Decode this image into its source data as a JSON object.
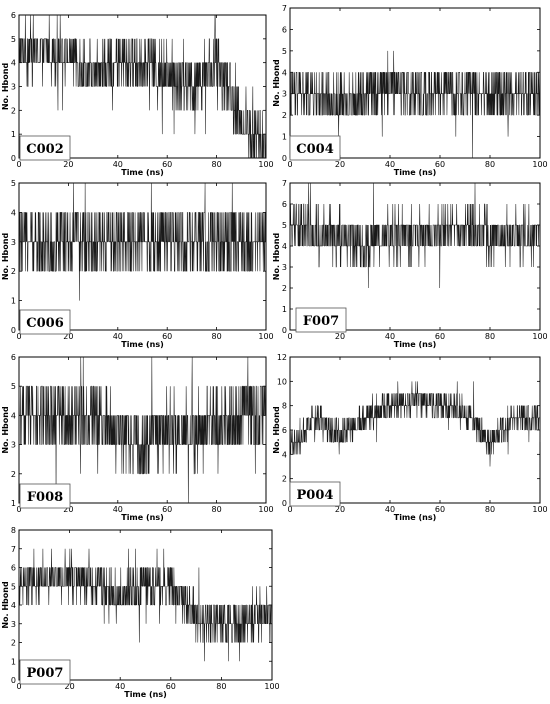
{
  "chart_data": [
    {
      "type": "line",
      "label": "C002",
      "xlabel": "Time (ns)",
      "ylabel": "No. Hbond",
      "xlim": [
        0,
        100
      ],
      "ylim": [
        0,
        6
      ],
      "xticks": [
        0,
        20,
        40,
        60,
        80,
        100
      ],
      "yticks": [
        0,
        1,
        2,
        3,
        4,
        5,
        6
      ],
      "series": [
        {
          "x": [
            0,
            10,
            20,
            30,
            40,
            50,
            60,
            70,
            80,
            90,
            100
          ],
          "y": [
            4.5,
            4.5,
            4.5,
            3.5,
            4,
            4,
            3.5,
            3,
            4,
            1.5,
            0.5
          ]
        }
      ]
    },
    {
      "type": "line",
      "label": "C004",
      "xlabel": "Time (ns)",
      "ylabel": "No. Hbond",
      "xlim": [
        0,
        100
      ],
      "ylim": [
        0,
        7
      ],
      "xticks": [
        0,
        20,
        40,
        60,
        80,
        100
      ],
      "yticks": [
        0,
        1,
        2,
        3,
        4,
        5,
        6,
        7
      ],
      "series": [
        {
          "x": [
            0,
            10,
            20,
            30,
            40,
            50,
            60,
            70,
            80,
            90,
            100
          ],
          "y": [
            3,
            3,
            2.5,
            3,
            3.5,
            3,
            3,
            3,
            3,
            3,
            3
          ]
        }
      ]
    },
    {
      "type": "line",
      "label": "C006",
      "xlabel": "Time (ns)",
      "ylabel": "No. Hbond",
      "xlim": [
        0,
        100
      ],
      "ylim": [
        0,
        5
      ],
      "xticks": [
        0,
        20,
        40,
        60,
        80,
        100
      ],
      "yticks": [
        0,
        1,
        2,
        3,
        4,
        5
      ],
      "series": [
        {
          "x": [
            0,
            10,
            20,
            30,
            40,
            50,
            60,
            70,
            80,
            90,
            100
          ],
          "y": [
            3,
            3,
            3,
            3,
            3,
            3,
            3,
            3,
            3,
            3,
            3
          ]
        }
      ]
    },
    {
      "type": "line",
      "label": "F007",
      "xlabel": "Time (ns)",
      "ylabel": "No. Hbond",
      "xlim": [
        0,
        100
      ],
      "ylim": [
        0,
        7
      ],
      "xticks": [
        0,
        20,
        40,
        60,
        80,
        100
      ],
      "yticks": [
        0,
        1,
        2,
        3,
        4,
        5,
        6,
        7
      ],
      "series": [
        {
          "x": [
            0,
            10,
            20,
            30,
            40,
            50,
            60,
            70,
            80,
            90,
            100
          ],
          "y": [
            5,
            4.5,
            4.5,
            4,
            4.5,
            4.5,
            4.5,
            5,
            4.5,
            4.5,
            4.5
          ]
        }
      ]
    },
    {
      "type": "line",
      "label": "F008",
      "xlabel": "Time (ns)",
      "ylabel": "No. Hbond",
      "xlim": [
        0,
        100
      ],
      "ylim": [
        1,
        6
      ],
      "xticks": [
        0,
        20,
        40,
        60,
        80,
        100
      ],
      "yticks": [
        1,
        2,
        3,
        4,
        5,
        6
      ],
      "series": [
        {
          "x": [
            0,
            10,
            20,
            30,
            40,
            50,
            60,
            70,
            80,
            90,
            100
          ],
          "y": [
            4,
            4,
            4,
            4,
            3.5,
            3,
            3.5,
            3.5,
            3.5,
            4,
            4
          ]
        }
      ]
    },
    {
      "type": "line",
      "label": "P004",
      "xlabel": "Time (ns)",
      "ylabel": "No. Hbond",
      "xlim": [
        0,
        100
      ],
      "ylim": [
        0,
        12
      ],
      "xticks": [
        0,
        20,
        40,
        60,
        80,
        100
      ],
      "yticks": [
        0,
        2,
        4,
        6,
        8,
        10,
        12
      ],
      "series": [
        {
          "x": [
            0,
            10,
            20,
            30,
            40,
            50,
            60,
            70,
            80,
            90,
            100
          ],
          "y": [
            4.5,
            7,
            5.5,
            7,
            8,
            8.5,
            8,
            7.5,
            5,
            7,
            7
          ]
        }
      ]
    },
    {
      "type": "line",
      "label": "P007",
      "xlabel": "Time (ns)",
      "ylabel": "No. Hbond",
      "xlim": [
        0,
        100
      ],
      "ylim": [
        0,
        8
      ],
      "xticks": [
        0,
        20,
        40,
        60,
        80,
        100
      ],
      "yticks": [
        0,
        1,
        2,
        3,
        4,
        5,
        6,
        7,
        8
      ],
      "series": [
        {
          "x": [
            0,
            10,
            20,
            30,
            40,
            50,
            60,
            70,
            80,
            90,
            100
          ],
          "y": [
            5,
            5.5,
            5.5,
            5,
            4.5,
            5,
            5,
            3.5,
            3,
            3,
            3.5
          ]
        }
      ]
    }
  ]
}
